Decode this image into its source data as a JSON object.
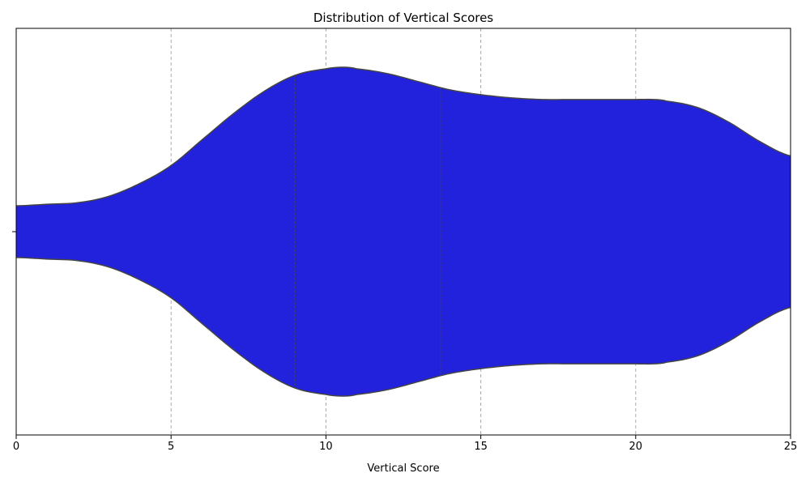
{
  "chart_data": {
    "type": "violin",
    "title": "Distribution of Vertical Scores",
    "xlabel": "Vertical Score",
    "ylabel": "",
    "xlim": [
      0,
      25
    ],
    "xticks": [
      0,
      5,
      10,
      15,
      20,
      25
    ],
    "grid": "x-dashed",
    "fill_color": "#2222dd",
    "edge_color": "#444444",
    "grid_color": "#aaaaaa",
    "density_profile": {
      "x": [
        0,
        1,
        2,
        3,
        4,
        5,
        6,
        7,
        8,
        9,
        10,
        10.6,
        11,
        12,
        13,
        14,
        15,
        16,
        17,
        18,
        19,
        20,
        20.6,
        21,
        22,
        23,
        24,
        25
      ],
      "half_width": [
        0.16,
        0.17,
        0.18,
        0.22,
        0.3,
        0.41,
        0.57,
        0.73,
        0.87,
        0.97,
        1.01,
        1.02,
        1.01,
        0.98,
        0.93,
        0.88,
        0.85,
        0.83,
        0.82,
        0.82,
        0.82,
        0.82,
        0.82,
        0.81,
        0.77,
        0.68,
        0.56,
        0.47
      ]
    },
    "quartile_lines": [
      9.0,
      13.7
    ]
  }
}
